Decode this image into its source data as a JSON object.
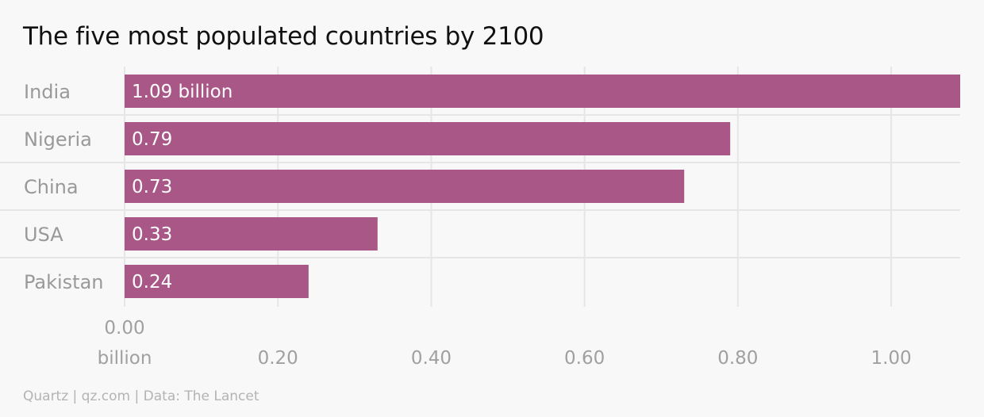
{
  "title": "The five most populated countries by 2100",
  "source": "Quartz | qz.com | Data: The Lancet",
  "colors": {
    "bar": "#a85786",
    "grid": "#e6e6e6",
    "background": "#f9f8f8"
  },
  "chart_data": {
    "type": "bar",
    "orientation": "horizontal",
    "title": "The five most populated countries by 2100",
    "categories": [
      "India",
      "Nigeria",
      "China",
      "USA",
      "Pakistan"
    ],
    "values": [
      1.09,
      0.79,
      0.73,
      0.33,
      0.24
    ],
    "data_labels": [
      "1.09 billion",
      "0.79",
      "0.73",
      "0.33",
      "0.24"
    ],
    "xlim": [
      0,
      1.09
    ],
    "x_ticks": [
      0.0,
      0.2,
      0.4,
      0.6,
      0.8,
      1.0
    ],
    "x_tick_labels": [
      "0.00",
      "0.20",
      "0.40",
      "0.60",
      "0.80",
      "1.00"
    ],
    "x_unit_label": "billion",
    "grid": true,
    "legend": "none"
  }
}
